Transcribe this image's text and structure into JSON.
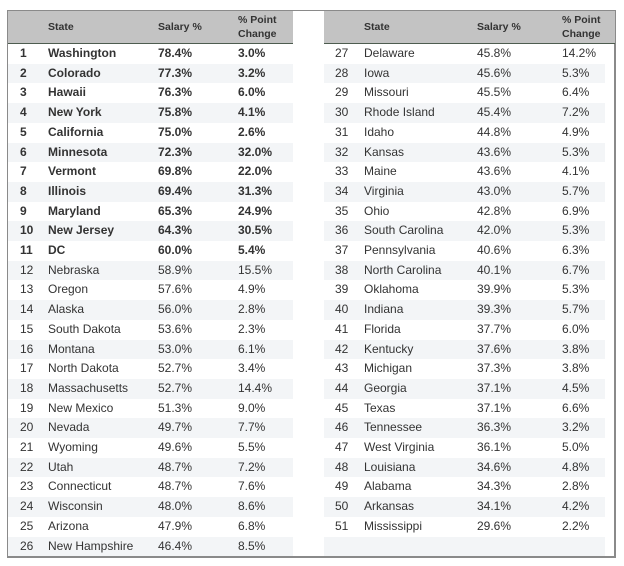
{
  "headers": {
    "state": "State",
    "salary": "Salary %",
    "change_line1": "% Point",
    "change_line2": "Change"
  },
  "left_rows": [
    {
      "rank": "1",
      "state": "Washington",
      "salary": "78.4%",
      "change": "3.0%",
      "bold": true
    },
    {
      "rank": "2",
      "state": "Colorado",
      "salary": "77.3%",
      "change": "3.2%",
      "bold": true
    },
    {
      "rank": "3",
      "state": "Hawaii",
      "salary": "76.3%",
      "change": "6.0%",
      "bold": true
    },
    {
      "rank": "4",
      "state": "New York",
      "salary": "75.8%",
      "change": "4.1%",
      "bold": true
    },
    {
      "rank": "5",
      "state": "California",
      "salary": "75.0%",
      "change": "2.6%",
      "bold": true
    },
    {
      "rank": "6",
      "state": "Minnesota",
      "salary": "72.3%",
      "change": "32.0%",
      "bold": true
    },
    {
      "rank": "7",
      "state": "Vermont",
      "salary": "69.8%",
      "change": "22.0%",
      "bold": true
    },
    {
      "rank": "8",
      "state": "Illinois",
      "salary": "69.4%",
      "change": "31.3%",
      "bold": true
    },
    {
      "rank": "9",
      "state": "Maryland",
      "salary": "65.3%",
      "change": "24.9%",
      "bold": true
    },
    {
      "rank": "10",
      "state": "New Jersey",
      "salary": "64.3%",
      "change": "30.5%",
      "bold": true
    },
    {
      "rank": "11",
      "state": "DC",
      "salary": "60.0%",
      "change": "5.4%",
      "bold": true
    },
    {
      "rank": "12",
      "state": "Nebraska",
      "salary": "58.9%",
      "change": "15.5%",
      "bold": false
    },
    {
      "rank": "13",
      "state": "Oregon",
      "salary": "57.6%",
      "change": "4.9%",
      "bold": false
    },
    {
      "rank": "14",
      "state": "Alaska",
      "salary": "56.0%",
      "change": "2.8%",
      "bold": false
    },
    {
      "rank": "15",
      "state": "South Dakota",
      "salary": "53.6%",
      "change": "2.3%",
      "bold": false
    },
    {
      "rank": "16",
      "state": "Montana",
      "salary": "53.0%",
      "change": "6.1%",
      "bold": false
    },
    {
      "rank": "17",
      "state": "North Dakota",
      "salary": "52.7%",
      "change": "3.4%",
      "bold": false
    },
    {
      "rank": "18",
      "state": "Massachusetts",
      "salary": "52.7%",
      "change": "14.4%",
      "bold": false
    },
    {
      "rank": "19",
      "state": "New Mexico",
      "salary": "51.3%",
      "change": "9.0%",
      "bold": false
    },
    {
      "rank": "20",
      "state": "Nevada",
      "salary": "49.7%",
      "change": "7.7%",
      "bold": false
    },
    {
      "rank": "21",
      "state": "Wyoming",
      "salary": "49.6%",
      "change": "5.5%",
      "bold": false
    },
    {
      "rank": "22",
      "state": "Utah",
      "salary": "48.7%",
      "change": "7.2%",
      "bold": false
    },
    {
      "rank": "23",
      "state": "Connecticut",
      "salary": "48.7%",
      "change": "7.6%",
      "bold": false
    },
    {
      "rank": "24",
      "state": "Wisconsin",
      "salary": "48.0%",
      "change": "8.6%",
      "bold": false
    },
    {
      "rank": "25",
      "state": "Arizona",
      "salary": "47.9%",
      "change": "6.8%",
      "bold": false
    },
    {
      "rank": "26",
      "state": "New Hampshire",
      "salary": "46.4%",
      "change": "8.5%",
      "bold": false
    }
  ],
  "right_rows": [
    {
      "rank": "27",
      "state": "Delaware",
      "salary": "45.8%",
      "change": "14.2%"
    },
    {
      "rank": "28",
      "state": "Iowa",
      "salary": "45.6%",
      "change": "5.3%"
    },
    {
      "rank": "29",
      "state": "Missouri",
      "salary": "45.5%",
      "change": "6.4%"
    },
    {
      "rank": "30",
      "state": "Rhode Island",
      "salary": "45.4%",
      "change": "7.2%"
    },
    {
      "rank": "31",
      "state": "Idaho",
      "salary": "44.8%",
      "change": "4.9%"
    },
    {
      "rank": "32",
      "state": "Kansas",
      "salary": "43.6%",
      "change": "5.3%"
    },
    {
      "rank": "33",
      "state": "Maine",
      "salary": "43.6%",
      "change": "4.1%"
    },
    {
      "rank": "34",
      "state": "Virginia",
      "salary": "43.0%",
      "change": "5.7%"
    },
    {
      "rank": "35",
      "state": "Ohio",
      "salary": "42.8%",
      "change": "6.9%"
    },
    {
      "rank": "36",
      "state": "South Carolina",
      "salary": "42.0%",
      "change": "5.3%"
    },
    {
      "rank": "37",
      "state": "Pennsylvania",
      "salary": "40.6%",
      "change": "6.3%"
    },
    {
      "rank": "38",
      "state": "North Carolina",
      "salary": "40.1%",
      "change": "6.7%"
    },
    {
      "rank": "39",
      "state": "Oklahoma",
      "salary": "39.9%",
      "change": "5.3%"
    },
    {
      "rank": "40",
      "state": "Indiana",
      "salary": "39.3%",
      "change": "5.7%"
    },
    {
      "rank": "41",
      "state": "Florida",
      "salary": "37.7%",
      "change": "6.0%"
    },
    {
      "rank": "42",
      "state": "Kentucky",
      "salary": "37.6%",
      "change": "3.8%"
    },
    {
      "rank": "43",
      "state": "Michigan",
      "salary": "37.3%",
      "change": "3.8%"
    },
    {
      "rank": "44",
      "state": "Georgia",
      "salary": "37.1%",
      "change": "4.5%"
    },
    {
      "rank": "45",
      "state": "Texas",
      "salary": "37.1%",
      "change": "6.6%"
    },
    {
      "rank": "46",
      "state": "Tennessee",
      "salary": "36.3%",
      "change": "3.2%"
    },
    {
      "rank": "47",
      "state": "West Virginia",
      "salary": "36.1%",
      "change": "5.0%"
    },
    {
      "rank": "48",
      "state": "Louisiana",
      "salary": "34.6%",
      "change": "4.8%"
    },
    {
      "rank": "49",
      "state": "Alabama",
      "salary": "34.3%",
      "change": "2.8%"
    },
    {
      "rank": "50",
      "state": "Arkansas",
      "salary": "34.1%",
      "change": "4.2%"
    },
    {
      "rank": "51",
      "state": "Mississippi",
      "salary": "29.6%",
      "change": "2.2%"
    },
    {
      "rank": "",
      "state": "",
      "salary": "",
      "change": ""
    }
  ],
  "colors": {
    "header_bg": "#c3c3c3",
    "header_rule": "#4d5c4f",
    "alt_row_bg": "#f3f5f7",
    "border": "#8a8a8a",
    "text": "#333333"
  }
}
